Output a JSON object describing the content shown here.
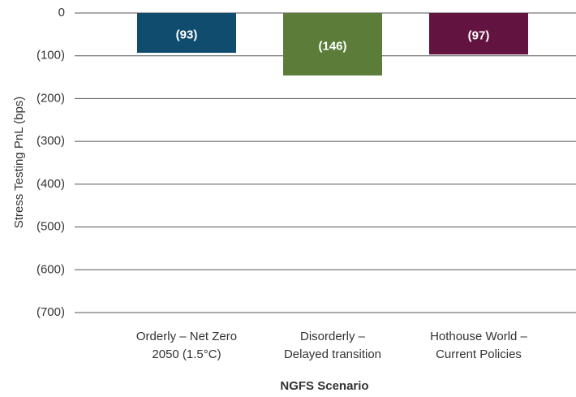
{
  "chart_data": {
    "type": "bar",
    "categories": [
      "Orderly – Net Zero\n2050 (1.5°C)",
      "Disorderly –\nDelayed transition",
      "Hothouse World –\nCurrent Policies"
    ],
    "values": [
      -93,
      -146,
      -97
    ],
    "value_labels": [
      "(93)",
      "(146)",
      "(97)"
    ],
    "colors": [
      "#0f4c6d",
      "#5b7d39",
      "#63133f"
    ],
    "ylabel": "Stress Testing PnL (bps)",
    "xlabel": "NGFS Scenario",
    "ylim": [
      -700,
      0
    ],
    "yticks": [
      0,
      {
        "value": -100,
        "label": "(100)"
      },
      {
        "value": -200,
        "label": "(200)"
      },
      {
        "value": -300,
        "label": "(300)"
      },
      {
        "value": -400,
        "label": "(400)"
      },
      {
        "value": -500,
        "label": "(500)"
      },
      {
        "value": -600,
        "label": "(600)"
      },
      {
        "value": -700,
        "label": "(700)"
      }
    ],
    "grid": true
  }
}
